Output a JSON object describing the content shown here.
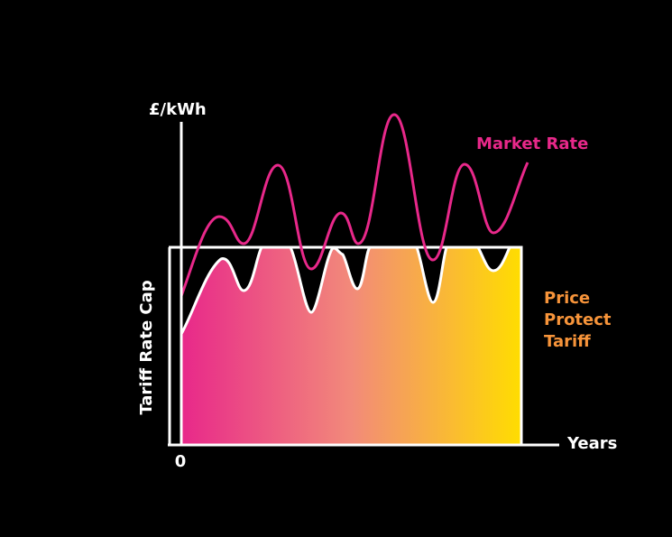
{
  "y_axis_label": "£/kWh",
  "x_axis_label": "Years",
  "origin_label": "0",
  "cap_label": "Tariff Rate Cap",
  "market_label": "Market Rate",
  "tariff_label": [
    "Price",
    "Protect",
    "Tariff"
  ]
}
